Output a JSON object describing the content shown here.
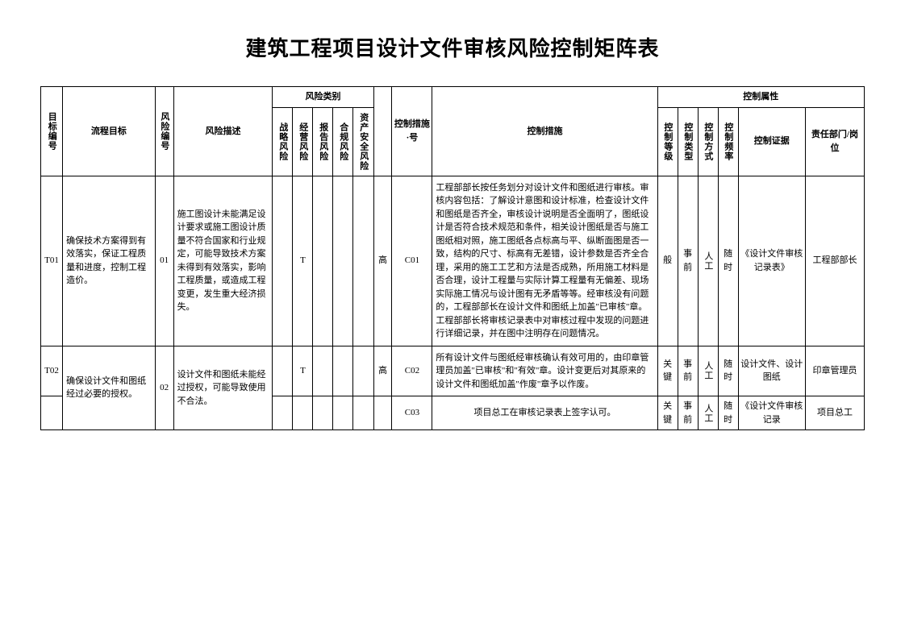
{
  "title": "建筑工程项目设计文件审核风险控制矩阵表",
  "headers": {
    "target_no": "目标编号",
    "process_target": "流程目标",
    "risk_no": "风险编号",
    "risk_desc": "风险描述",
    "risk_category": "风险类别",
    "risk_cat_sub": {
      "strategic": "战略风险",
      "operation": "经营风险",
      "report": "报告风险",
      "compliance": "合规风险",
      "asset": "资产安全风险"
    },
    "risk_level": "",
    "measure_no": "控制措施·号",
    "measure": "控制措施",
    "ctrl_attr": "控制属性",
    "ctrl_attr_sub": {
      "level": "控制等级",
      "type": "控制类型",
      "method": "控制方式",
      "freq": "控制频率",
      "evidence": "控制证据",
      "dept": "责任部门/岗位"
    }
  },
  "rows": [
    {
      "target_no": "T01",
      "process_target": "确保技术方案得到有效落实，保证工程质量和进度，控制工程造价。",
      "risk_no": "01",
      "risk_desc": "施工图设计未能满足设计要求或施工图设计质量不符合国家和行业规定，可能导致技术方案未得到有效落实，影响工程质量，或造成工程变更，发生重大经济损失。",
      "rc_strategic": "",
      "rc_operation": "T",
      "rc_report": "",
      "rc_compliance": "",
      "rc_asset": "",
      "risk_level": "高",
      "measure_no": "C01",
      "measure": "工程部部长按任务划分对设计文件和图纸进行审核。审核内容包括：了解设计意图和设计标准，检查设计文件和图纸是否齐全，审核设计说明是否全面明了，图纸设计是否符合技术规范和条件，相关设计图纸是否与施工图纸相对照，施工图纸各点标高与平、纵断面图是否一致，结构的尺寸、标高有无差错，设计参数是否齐全合理，采用的施工工艺和方法是否成熟，所用施工材料是否合理，设计工程量与实际计算工程量有无偏差、现场实际施工情况与设计图有无矛盾等等。经审核没有问题的，工程部部长在设计文件和图纸上加盖\"已审核\"章。工程部部长将审核记录表中对审核过程中发现的问题进行详细记录，并在图中注明存在问题情况。",
      "ctrl_level": "般",
      "ctrl_type": "事前",
      "ctrl_method": "人工",
      "ctrl_freq": "随时",
      "evidence": "《设计文件审核记录表》",
      "dept": "工程部部长"
    },
    {
      "target_no": "T02",
      "process_target": "确保设计文件和图纸经过必要的授权。",
      "risk_no": "02",
      "risk_desc": "设计文件和图纸未能经过授权，可能导致使用不合法。",
      "rc_strategic": "",
      "rc_operation": "T",
      "rc_report": "",
      "rc_compliance": "",
      "rc_asset": "",
      "risk_level": "高",
      "measure_no": "C02",
      "measure": "所有设计文件与图纸经审核确认有效可用的，由印章管理员加盖\"已审核\"和\"有效\"章。设计变更后对其原来的设计文件和图纸加盖\"作废\"章予以作废。",
      "ctrl_level": "关键",
      "ctrl_type": "事前",
      "ctrl_method": "人工",
      "ctrl_freq": "随时",
      "evidence": "设计文件、设计图纸",
      "dept": "印章管理员"
    },
    {
      "target_no": "",
      "process_target": "",
      "risk_no": "",
      "risk_desc": "",
      "rc_strategic": "",
      "rc_operation": "",
      "rc_report": "",
      "rc_compliance": "",
      "rc_asset": "",
      "risk_level": "",
      "measure_no": "C03",
      "measure": "项目总工在审核记录表上签字认可。",
      "ctrl_level": "关键",
      "ctrl_type": "事前",
      "ctrl_method": "人工",
      "ctrl_freq": "随时",
      "evidence": "《设计文件审核记录",
      "dept": "项目总工"
    }
  ]
}
